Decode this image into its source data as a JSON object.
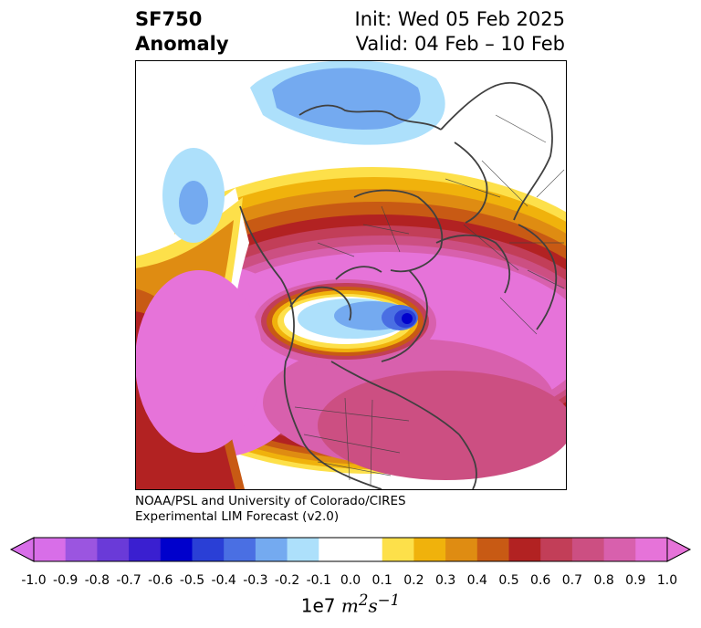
{
  "header": {
    "left_line1": "SF750",
    "left_line2": "Anomaly",
    "right_line1": "Init: Wed 05 Feb 2025",
    "right_line2": "Valid: 04 Feb – 10 Feb"
  },
  "credit": {
    "line1": "NOAA/PSL and University of Colorado/CIRES",
    "line2": "Experimental LIM Forecast (v2.0)"
  },
  "colorbar": {
    "unit_prefix": "1e7 ",
    "unit_m": "m",
    "unit_m_exp": "2",
    "unit_s": "s",
    "unit_s_exp": "−1",
    "ticks": [
      "-1.0",
      "-0.9",
      "-0.8",
      "-0.7",
      "-0.6",
      "-0.5",
      "-0.4",
      "-0.3",
      "-0.2",
      "-0.1",
      "0.0",
      "0.1",
      "0.2",
      "0.3",
      "0.4",
      "0.5",
      "0.6",
      "0.7",
      "0.8",
      "0.9",
      "1.0"
    ],
    "colors": [
      "#d86ee8",
      "#9b55e0",
      "#6a3ad8",
      "#3a1fd0",
      "#0000cc",
      "#2a3fd6",
      "#4a6fe3",
      "#74aaf0",
      "#ade0fb",
      "#ffffff",
      "#ffffff",
      "#fde04a",
      "#f0b20c",
      "#df8c12",
      "#c85a14",
      "#b22222",
      "#c23e58",
      "#cc4f82",
      "#d860ad",
      "#e673d9"
    ]
  },
  "map": {
    "projection": "north-polar-stereographic",
    "land_outline_color": "#404040"
  }
}
